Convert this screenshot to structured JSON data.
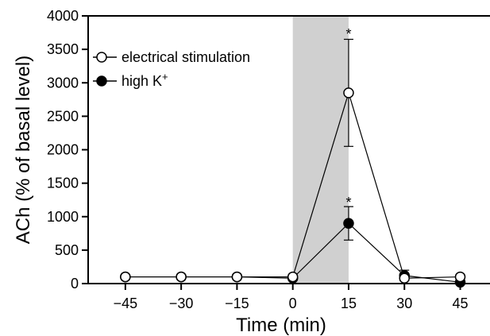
{
  "chart_data": {
    "type": "line",
    "xlabel": "Time (min)",
    "ylabel": "ACh (% of basal level)",
    "xlim": [
      -55,
      53
    ],
    "ylim": [
      0,
      4000
    ],
    "xticks": [
      -45,
      -30,
      -15,
      0,
      15,
      30,
      45
    ],
    "xtick_labels": [
      "−45",
      "−30",
      "−15",
      "0",
      "15",
      "30",
      "45"
    ],
    "yticks": [
      0,
      500,
      1000,
      1500,
      2000,
      2500,
      3000,
      3500,
      4000
    ],
    "shaded_region": {
      "x0": 0,
      "x1": 15,
      "color": "#d0d0d0"
    },
    "x": [
      -45,
      -30,
      -15,
      0,
      15,
      30,
      45
    ],
    "series": [
      {
        "name": "electrical stimulation",
        "marker": "open-circle",
        "values": [
          100,
          100,
          100,
          100,
          2850,
          80,
          100
        ],
        "error_up": [
          0,
          0,
          0,
          0,
          800,
          0,
          0
        ],
        "error_down": [
          0,
          0,
          0,
          0,
          800,
          0,
          0
        ]
      },
      {
        "name": "high K",
        "name_sup": "+",
        "marker": "filled-circle",
        "values": [
          100,
          100,
          100,
          80,
          900,
          120,
          20
        ],
        "error_up": [
          0,
          0,
          0,
          0,
          250,
          80,
          0
        ],
        "error_down": [
          0,
          0,
          0,
          0,
          250,
          80,
          0
        ]
      }
    ],
    "annotations": [
      {
        "text": "*",
        "x": 15,
        "y": 3800
      },
      {
        "text": "*",
        "x": 15,
        "y": 1280
      }
    ],
    "legend_position": "top-left-inside-plot"
  }
}
